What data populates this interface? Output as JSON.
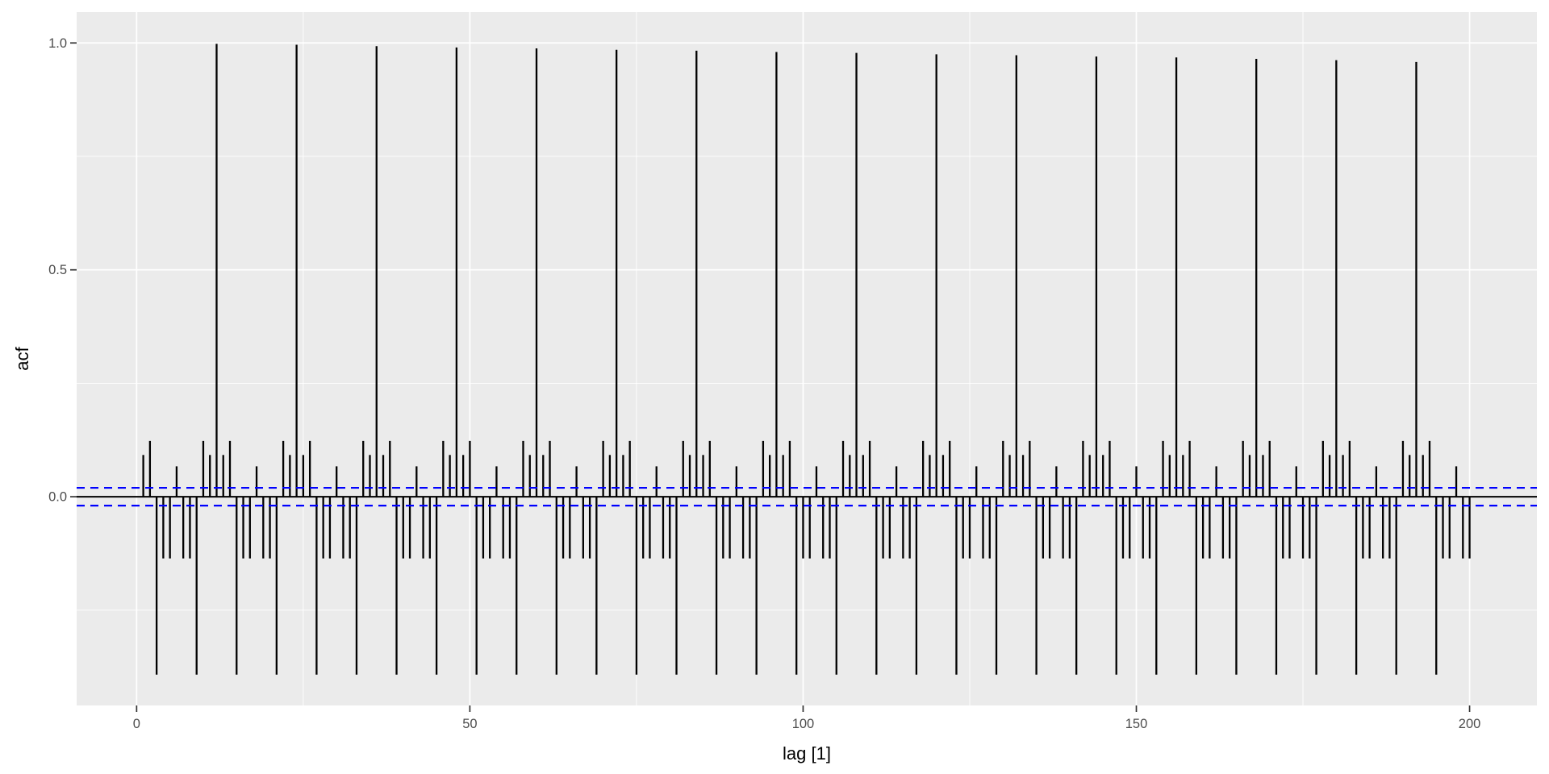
{
  "colors": {
    "background": "#FFFFFF",
    "panel_bg": "#EBEBEB",
    "grid_major": "#FFFFFF",
    "grid_minor": "#FFFFFF",
    "bar": "#000000",
    "zero_line": "#000000",
    "ci_line": "#0000FF",
    "tick_mark": "#333333",
    "tick_label": "#4D4D4D",
    "axis_title": "#000000"
  },
  "chart_data": {
    "type": "bar",
    "subtype": "acf-lag-plot",
    "title": "",
    "xlabel": "lag [1]",
    "ylabel": "acf",
    "lag_start": 1,
    "lag_end": 200,
    "seasonal_period": 12,
    "grid": true,
    "legend": false,
    "xlim": [
      -9.0,
      210.1
    ],
    "ylim": [
      -0.46,
      1.068
    ],
    "x_major_ticks": [
      {
        "value": 0,
        "label": "0"
      },
      {
        "value": 50,
        "label": "50"
      },
      {
        "value": 100,
        "label": "100"
      },
      {
        "value": 150,
        "label": "150"
      },
      {
        "value": 200,
        "label": "200"
      }
    ],
    "x_minor_gridlines": [
      25,
      75,
      125,
      175
    ],
    "y_major_ticks": [
      {
        "value": 0,
        "label": "0.0"
      },
      {
        "value": 0.5,
        "label": "0.5"
      },
      {
        "value": 1,
        "label": "1.0"
      }
    ],
    "y_minor_gridlines": [
      -0.25,
      0.25,
      0.75
    ],
    "zero_line": 0,
    "confidence_bounds": [
      -0.0196,
      0.0196
    ],
    "values": [
      0.092,
      0.123,
      -0.392,
      -0.136,
      -0.136,
      0.067,
      -0.136,
      -0.136,
      -0.392,
      0.123,
      0.092,
      0.998,
      0.092,
      0.123,
      -0.392,
      -0.136,
      -0.136,
      0.067,
      -0.136,
      -0.136,
      -0.392,
      0.123,
      0.092,
      0.996,
      0.092,
      0.123,
      -0.392,
      -0.136,
      -0.136,
      0.067,
      -0.136,
      -0.136,
      -0.392,
      0.123,
      0.092,
      0.993,
      0.092,
      0.123,
      -0.392,
      -0.136,
      -0.136,
      0.067,
      -0.136,
      -0.136,
      -0.392,
      0.123,
      0.092,
      0.99,
      0.092,
      0.123,
      -0.392,
      -0.136,
      -0.136,
      0.067,
      -0.136,
      -0.136,
      -0.392,
      0.123,
      0.092,
      0.988,
      0.092,
      0.123,
      -0.392,
      -0.136,
      -0.136,
      0.067,
      -0.136,
      -0.136,
      -0.392,
      0.123,
      0.092,
      0.985,
      0.092,
      0.123,
      -0.392,
      -0.136,
      -0.136,
      0.067,
      -0.136,
      -0.136,
      -0.392,
      0.123,
      0.092,
      0.983,
      0.092,
      0.123,
      -0.392,
      -0.136,
      -0.136,
      0.067,
      -0.136,
      -0.136,
      -0.392,
      0.123,
      0.092,
      0.98,
      0.092,
      0.123,
      -0.392,
      -0.136,
      -0.136,
      0.067,
      -0.136,
      -0.136,
      -0.392,
      0.123,
      0.092,
      0.978,
      0.092,
      0.123,
      -0.392,
      -0.136,
      -0.136,
      0.067,
      -0.136,
      -0.136,
      -0.392,
      0.123,
      0.092,
      0.975,
      0.092,
      0.123,
      -0.392,
      -0.136,
      -0.136,
      0.067,
      -0.136,
      -0.136,
      -0.392,
      0.123,
      0.092,
      0.973,
      0.092,
      0.123,
      -0.392,
      -0.136,
      -0.136,
      0.067,
      -0.136,
      -0.136,
      -0.392,
      0.123,
      0.092,
      0.97,
      0.092,
      0.123,
      -0.392,
      -0.136,
      -0.136,
      0.067,
      -0.136,
      -0.136,
      -0.392,
      0.123,
      0.092,
      0.968,
      0.092,
      0.123,
      -0.392,
      -0.136,
      -0.136,
      0.067,
      -0.136,
      -0.136,
      -0.392,
      0.123,
      0.092,
      0.965,
      0.092,
      0.123,
      -0.392,
      -0.136,
      -0.136,
      0.067,
      -0.136,
      -0.136,
      -0.392,
      0.123,
      0.092,
      0.962,
      0.092,
      0.123,
      -0.392,
      -0.136,
      -0.136,
      0.067,
      -0.136,
      -0.136,
      -0.392,
      0.123,
      0.092,
      0.958,
      0.092,
      0.123,
      -0.392,
      -0.136,
      -0.136,
      0.067,
      -0.136,
      -0.136
    ]
  }
}
